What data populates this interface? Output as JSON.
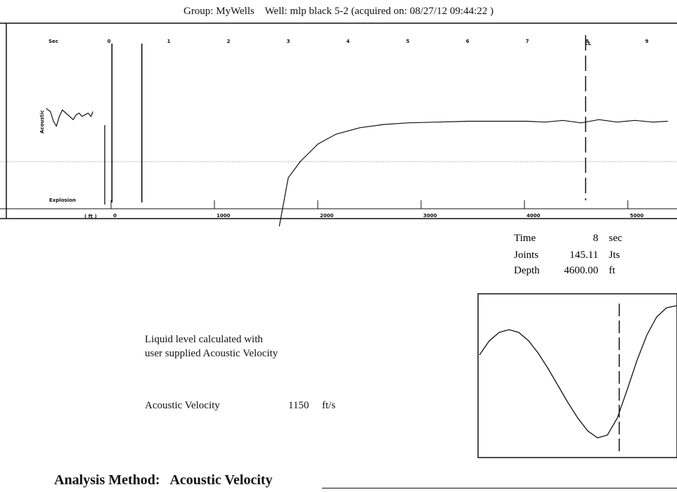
{
  "header": {
    "group_label": "Group: MyWells",
    "well_label": "Well: mlp black 5-2 (acquired on: 08/27/12 09:44:22 )"
  },
  "chart_data": {
    "type": "line",
    "title": "",
    "time_axis": {
      "unit_label": "Sec",
      "ticks": [
        0,
        1,
        2,
        3,
        4,
        5,
        6,
        7,
        8,
        9
      ]
    },
    "depth_axis": {
      "unit_label": "( ft )",
      "ticks": [
        0,
        1000,
        2000,
        3000,
        4000,
        5000
      ]
    },
    "event_label": "Explosion",
    "signal_label": "Acoustic",
    "liquid_level_marker": {
      "label": "LL",
      "time_sec": 8
    },
    "explosion_markers_sec": [
      0.05,
      0.55
    ],
    "grid": false,
    "series": [
      {
        "x": [
          -1.05,
          -1.02,
          -0.98,
          -0.93,
          -0.88,
          -0.83,
          -0.78,
          -0.72,
          -0.66,
          -0.6,
          -0.55,
          -0.5,
          -0.45,
          -0.4,
          -0.35,
          -0.3,
          -0.27
        ],
        "y": [
          0.66,
          0.64,
          0.62,
          0.5,
          0.44,
          0.56,
          0.64,
          0.6,
          0.56,
          0.52,
          0.58,
          0.6,
          0.56,
          0.58,
          0.6,
          0.56,
          0.62
        ]
      },
      {
        "x": [
          2.85,
          3.0,
          3.2,
          3.5,
          3.8,
          4.2,
          4.6,
          5.0,
          5.5,
          6.0,
          6.5,
          7.0,
          7.3,
          7.6,
          7.9,
          8.2,
          8.5,
          8.8,
          9.1,
          9.35
        ],
        "y": [
          -0.8,
          -0.2,
          0.0,
          0.22,
          0.34,
          0.42,
          0.46,
          0.48,
          0.49,
          0.5,
          0.5,
          0.5,
          0.49,
          0.51,
          0.48,
          0.52,
          0.49,
          0.51,
          0.49,
          0.5
        ]
      }
    ]
  },
  "readout": {
    "time": {
      "label": "Time",
      "value": "8",
      "unit": "sec"
    },
    "joints": {
      "label": "Joints",
      "value": "145.11",
      "unit": "Jts"
    },
    "depth": {
      "label": "Depth",
      "value": "4600.00",
      "unit": "ft"
    }
  },
  "zoom_chart": {
    "x": [
      0,
      0.05,
      0.1,
      0.15,
      0.2,
      0.25,
      0.3,
      0.35,
      0.4,
      0.45,
      0.5,
      0.55,
      0.6,
      0.65,
      0.7,
      0.75,
      0.8,
      0.85,
      0.9,
      0.95,
      1.0
    ],
    "y": [
      0.3,
      0.5,
      0.62,
      0.66,
      0.62,
      0.5,
      0.32,
      0.1,
      -0.14,
      -0.38,
      -0.6,
      -0.78,
      -0.88,
      -0.84,
      -0.6,
      -0.2,
      0.22,
      0.58,
      0.84,
      0.97,
      1.0
    ],
    "marker_x": 0.71
  },
  "note": {
    "line1": "Liquid level calculated with",
    "line2": "user supplied Acoustic Velocity"
  },
  "velocity": {
    "label": "Acoustic Velocity",
    "value": "1150",
    "unit": "ft/s"
  },
  "footer": {
    "method_label": "Analysis Method:",
    "method_value": "Acoustic Velocity"
  }
}
